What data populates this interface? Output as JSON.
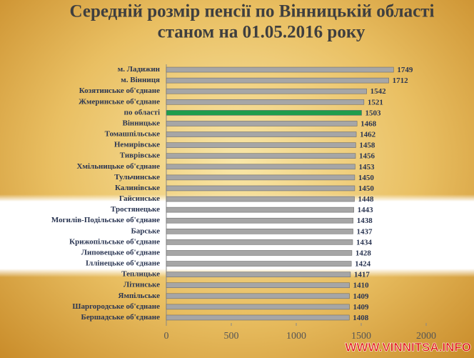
{
  "chart_data": {
    "type": "hbar",
    "title": [
      "Середній розмір пенсії по Вінницькій області",
      "станом на 01.05.2016 року"
    ],
    "categories": [
      "м. Ладижин",
      "м. Вінниця",
      "Козятинське об'єднане",
      "Жмеринське об'єднане",
      "по області",
      "Вінницьке",
      "Томашпільське",
      "Немирівське",
      "Тиврівське",
      "Хмільницьке об'єднане",
      "Тульчинське",
      "Калинівське",
      "Гайсинське",
      "Тростянецьке",
      "Могилів-Подільське об'єднане",
      "Барське",
      "Крижопільське об'єднане",
      "Липовецьке об'єднане",
      "Іллінецьке об'єднане",
      "Теплицьке",
      "Літинське",
      "Ямпільське",
      "Шаргородське об'єднане",
      "Бершадське об'єднане"
    ],
    "values": [
      1749,
      1712,
      1542,
      1521,
      1503,
      1468,
      1462,
      1458,
      1456,
      1453,
      1450,
      1450,
      1448,
      1443,
      1438,
      1437,
      1434,
      1428,
      1424,
      1417,
      1410,
      1409,
      1409,
      1408
    ],
    "colors": [
      "#a6a6a6",
      "#a6a6a6",
      "#a6a6a6",
      "#a6a6a6",
      "#1f9d4c",
      "#a6a6a6",
      "#a6a6a6",
      "#a6a6a6",
      "#a6a6a6",
      "#a6a6a6",
      "#a6a6a6",
      "#a6a6a6",
      "#a6a6a6",
      "#a6a6a6",
      "#a6a6a6",
      "#a6a6a6",
      "#a6a6a6",
      "#a6a6a6",
      "#a6a6a6",
      "#a6a6a6",
      "#a6a6a6",
      "#a6a6a6",
      "#a6a6a6",
      "#a6a6a6"
    ],
    "xlim": [
      0,
      2000
    ],
    "xticks": [
      0,
      500,
      1000,
      1500,
      2000
    ],
    "watermark": "WWW.VINNITSA.INFO"
  }
}
